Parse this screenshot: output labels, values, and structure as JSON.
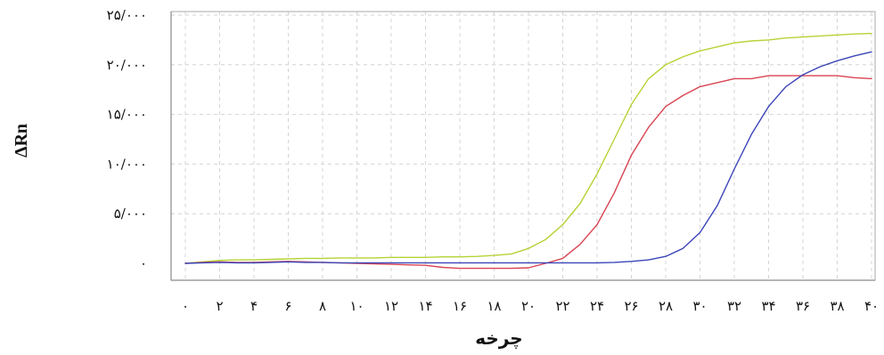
{
  "chart_data": {
    "type": "line",
    "title": "",
    "xlabel": "چرخه",
    "ylabel": "ΔRn",
    "xlim": [
      0,
      40
    ],
    "ylim": [
      0,
      25000
    ],
    "x_ticks": [
      0,
      2,
      4,
      6,
      8,
      10,
      12,
      14,
      16,
      18,
      20,
      22,
      24,
      26,
      28,
      30,
      32,
      34,
      36,
      38,
      40
    ],
    "x_tick_labels": [
      "۰",
      "۲",
      "۴",
      "۶",
      "۸",
      "۱۰",
      "۱۲",
      "۱۴",
      "۱۶",
      "۱۸",
      "۲۰",
      "۲۲",
      "۲۴",
      "۲۶",
      "۲۸",
      "۳۰",
      "۳۲",
      "۳۴",
      "۳۶",
      "۳۸",
      "۴۰"
    ],
    "y_ticks": [
      0,
      5000,
      10000,
      15000,
      20000,
      25000
    ],
    "y_tick_labels": [
      "۰",
      "۵/۰۰۰",
      "۱۰/۰۰۰",
      "۱۵/۰۰۰",
      "۲۰/۰۰۰",
      "۲۵/۰۰۰"
    ],
    "grid": true,
    "series": [
      {
        "color": "#b5d334",
        "x": [
          0,
          1,
          2,
          3,
          4,
          5,
          6,
          7,
          8,
          9,
          10,
          11,
          12,
          13,
          14,
          15,
          16,
          17,
          18,
          19,
          20,
          21,
          22,
          23,
          24,
          25,
          26,
          27,
          28,
          29,
          30,
          31,
          32,
          33,
          34,
          35,
          36,
          37,
          38,
          39,
          40
        ],
        "values": [
          0,
          150,
          300,
          350,
          350,
          400,
          450,
          500,
          500,
          550,
          550,
          550,
          600,
          600,
          600,
          650,
          650,
          700,
          800,
          950,
          1500,
          2400,
          3900,
          6000,
          9000,
          12500,
          16000,
          18600,
          20000,
          20800,
          21400,
          21800,
          22200,
          22400,
          22500,
          22700,
          22800,
          22900,
          23000,
          23100,
          23150
        ]
      },
      {
        "color": "#d94452",
        "x": [
          0,
          1,
          2,
          3,
          4,
          5,
          6,
          7,
          8,
          9,
          10,
          11,
          12,
          13,
          14,
          15,
          16,
          17,
          18,
          19,
          20,
          21,
          22,
          23,
          24,
          25,
          26,
          27,
          28,
          29,
          30,
          31,
          32,
          33,
          34,
          35,
          36,
          37,
          38,
          39,
          40
        ],
        "values": [
          0,
          100,
          150,
          100,
          100,
          150,
          200,
          150,
          100,
          50,
          0,
          -50,
          -100,
          -150,
          -200,
          -400,
          -500,
          -500,
          -500,
          -500,
          -450,
          0,
          500,
          1900,
          3900,
          7100,
          10900,
          13700,
          15800,
          16900,
          17800,
          18200,
          18600,
          18600,
          18900,
          18900,
          18900,
          18900,
          18900,
          18700,
          18600
        ]
      },
      {
        "color": "#3b45b8",
        "x": [
          0,
          1,
          2,
          3,
          4,
          5,
          6,
          7,
          8,
          9,
          10,
          11,
          12,
          13,
          14,
          15,
          16,
          17,
          18,
          19,
          20,
          21,
          22,
          23,
          24,
          25,
          26,
          27,
          28,
          29,
          30,
          31,
          32,
          33,
          34,
          35,
          36,
          37,
          38,
          39,
          40
        ],
        "values": [
          0,
          50,
          100,
          50,
          50,
          100,
          150,
          100,
          100,
          50,
          50,
          50,
          50,
          50,
          50,
          50,
          50,
          50,
          50,
          50,
          50,
          50,
          50,
          50,
          50,
          100,
          200,
          350,
          700,
          1500,
          3100,
          5800,
          9500,
          13000,
          15800,
          17800,
          19000,
          19800,
          20400,
          20900,
          21300
        ]
      }
    ]
  }
}
